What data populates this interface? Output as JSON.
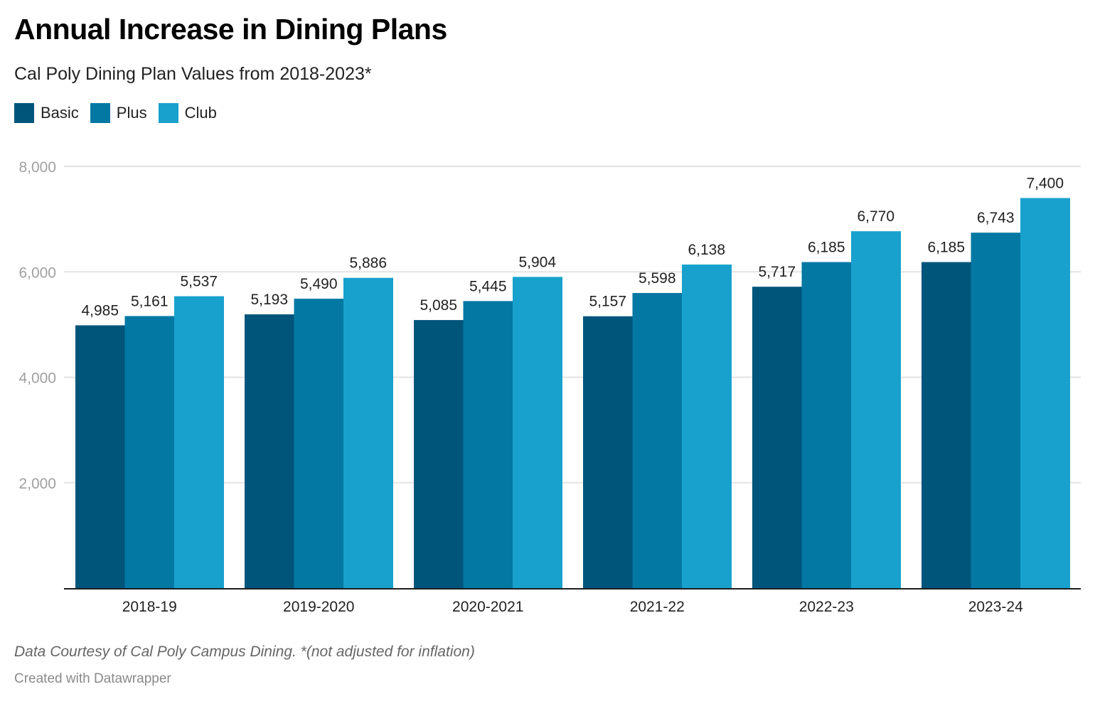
{
  "header": {
    "title": "Annual Increase in Dining Plans",
    "subtitle": "Cal Poly Dining Plan Values from 2018-2023*"
  },
  "legend": [
    {
      "label": "Basic",
      "color": "#00557b"
    },
    {
      "label": "Plus",
      "color": "#0378a3"
    },
    {
      "label": "Club",
      "color": "#19a1cd"
    }
  ],
  "footer": {
    "notes": "Data Courtesy of Cal Poly Campus Dining. *(not adjusted for inflation)",
    "byline": "Created with Datawrapper"
  },
  "chart_data": {
    "type": "bar",
    "title": "Annual Increase in Dining Plans",
    "subtitle": "Cal Poly Dining Plan Values from 2018-2023*",
    "xlabel": "",
    "ylabel": "",
    "categories": [
      "2018-19",
      "2019-2020",
      "2020-2021",
      "2021-22",
      "2022-23",
      "2023-24"
    ],
    "series": [
      {
        "name": "Basic",
        "color": "#00557b",
        "values": [
          4985,
          5193,
          5085,
          5157,
          5717,
          6185
        ]
      },
      {
        "name": "Plus",
        "color": "#0378a3",
        "values": [
          5161,
          5490,
          5445,
          5598,
          6185,
          6743
        ]
      },
      {
        "name": "Club",
        "color": "#19a1cd",
        "values": [
          5537,
          5886,
          5904,
          6138,
          6770,
          7400
        ]
      }
    ],
    "value_labels": [
      [
        "4,985",
        "5,193",
        "5,085",
        "5,157",
        "5,717",
        "6,185"
      ],
      [
        "5,161",
        "5,490",
        "5,445",
        "5,598",
        "6,185",
        "6,743"
      ],
      [
        "5,537",
        "5,886",
        "5,904",
        "6,138",
        "6,770",
        "7,400"
      ]
    ],
    "yticks": [
      2000,
      4000,
      6000,
      8000
    ],
    "ytick_labels": [
      "2,000",
      "4,000",
      "6,000",
      "8,000"
    ],
    "ylim": [
      0,
      8000
    ],
    "grid": true,
    "legend_position": "top-left"
  }
}
